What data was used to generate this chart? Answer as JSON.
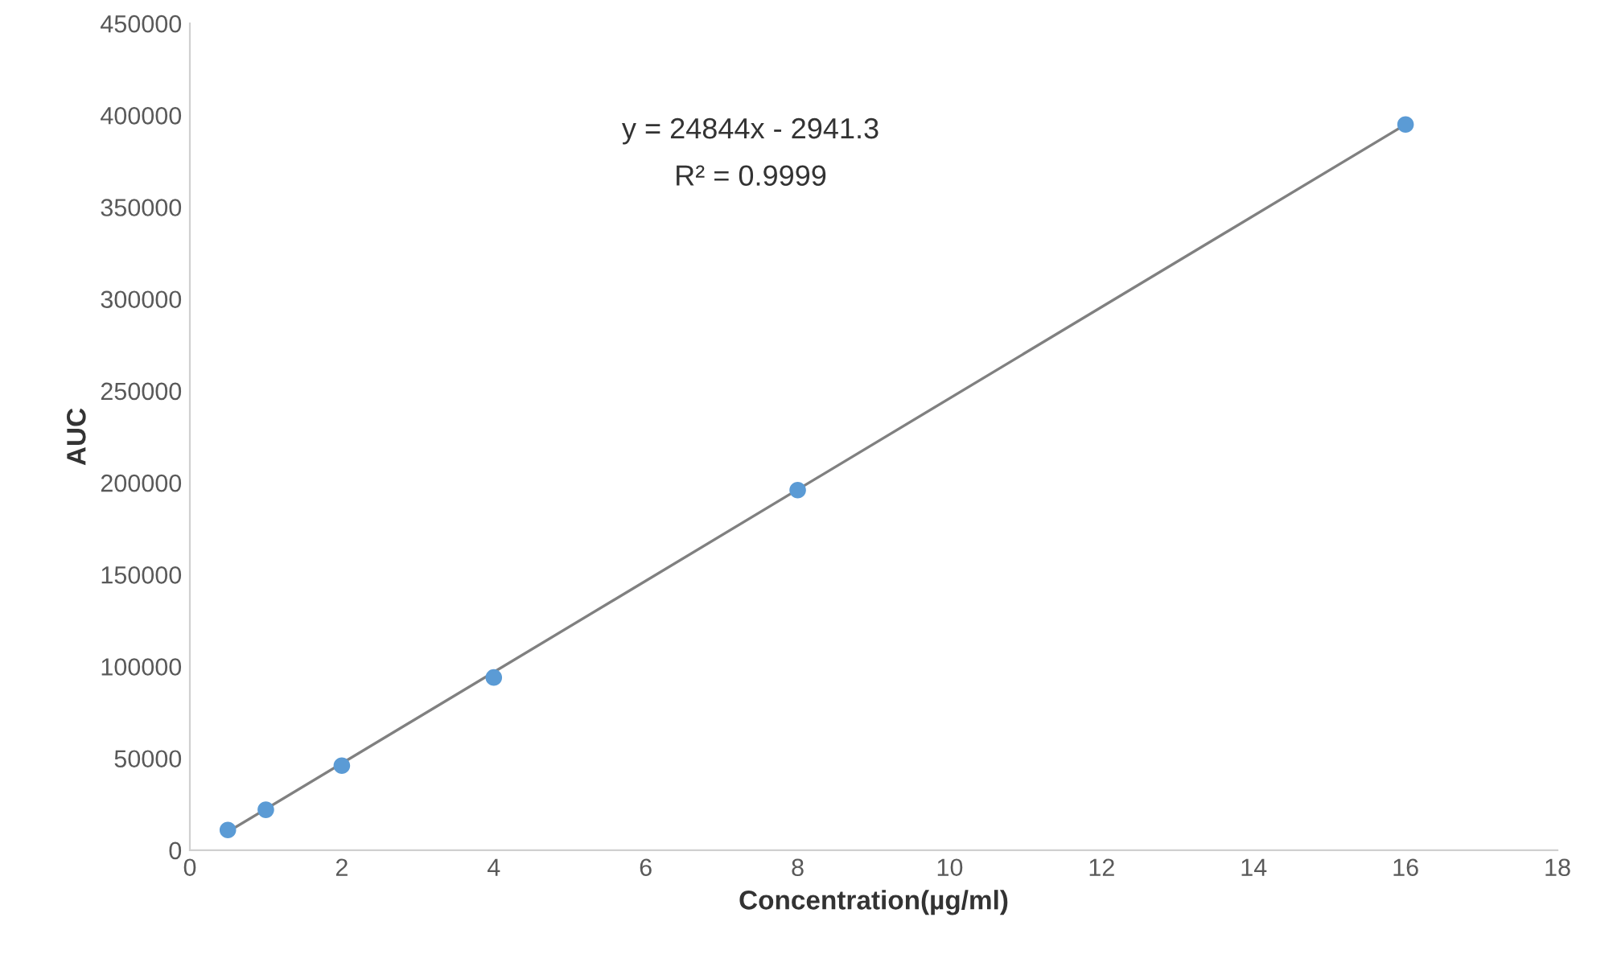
{
  "chart_data": {
    "type": "scatter",
    "xlabel": "Concentration(µg/ml)",
    "ylabel": "AUC",
    "series": [
      {
        "color": "#5b9bd5",
        "marker": "circle",
        "x": [
          0.5,
          1,
          2,
          4,
          8,
          16
        ],
        "values": [
          11000,
          22000,
          46000,
          94000,
          196000,
          395000
        ]
      },
      {
        "type": "line",
        "color": "#808080",
        "x": [
          0.5,
          16
        ],
        "values": [
          10000,
          395000
        ]
      }
    ],
    "annotations": [
      "y = 24844x - 2941.3",
      "R² = 0.9999"
    ],
    "xlim": [
      0,
      18
    ],
    "xticks": [
      0,
      2,
      4,
      6,
      8,
      10,
      12,
      14,
      16,
      18
    ],
    "ylim": [
      0,
      450000
    ],
    "yticks": [
      0,
      50000,
      100000,
      150000,
      200000,
      250000,
      300000,
      350000,
      400000,
      450000
    ],
    "grid": false,
    "legend": false
  }
}
